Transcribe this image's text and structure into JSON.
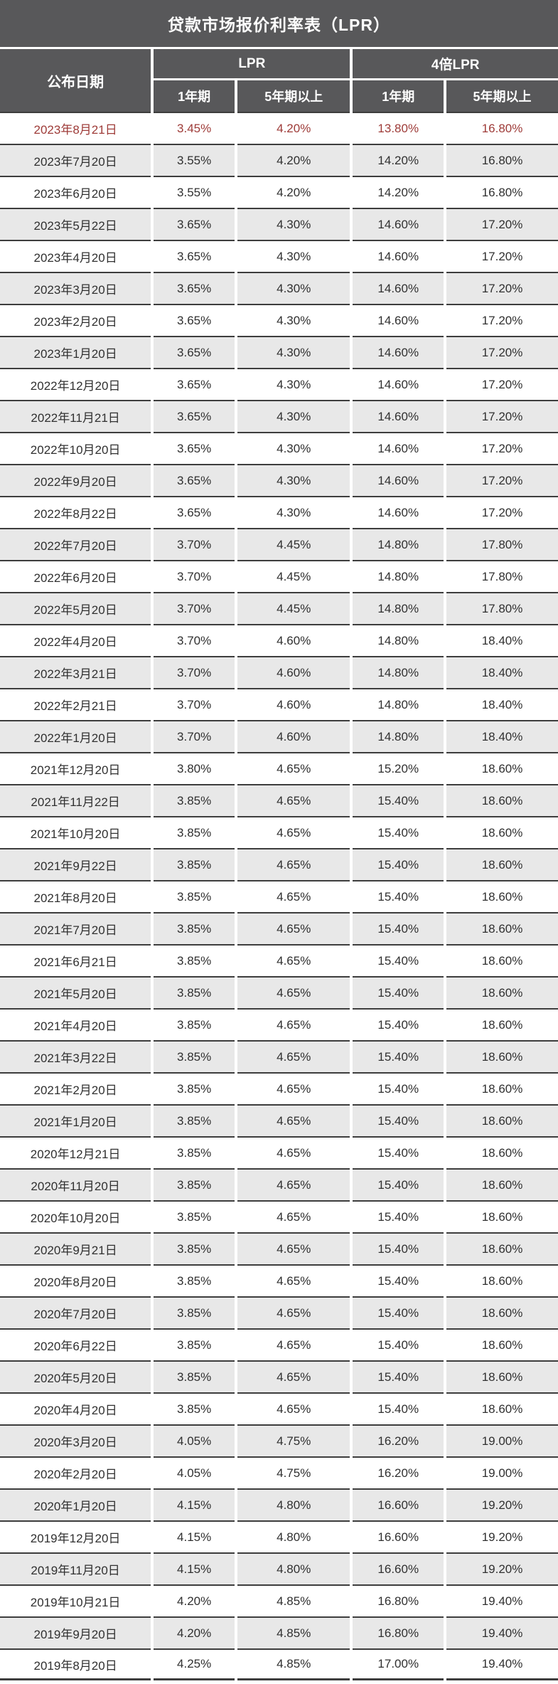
{
  "page_title": "贷款市场报价利率表（LPR）",
  "colors": {
    "header_bg": "#58585a",
    "alt_row_bg": "#e8e8e8",
    "row_border": "#3d3d3d",
    "highlight_text": "#9e3b38",
    "body_text": "#303030"
  },
  "header": {
    "columns": {
      "date": "公布日期",
      "group_lpr": "LPR",
      "group_4x": "4倍LPR",
      "term_1y": "1年期",
      "term_5y": "5年期以上"
    }
  },
  "chart_data": {
    "type": "table",
    "title": "贷款市场报价利率表（LPR）",
    "columns": [
      "公布日期",
      "LPR 1年期",
      "LPR 5年期以上",
      "4倍LPR 1年期",
      "4倍LPR 5年期以上"
    ],
    "highlight_row": 0,
    "rows": [
      [
        "2023年8月21日",
        "3.45%",
        "4.20%",
        "13.80%",
        "16.80%"
      ],
      [
        "2023年7月20日",
        "3.55%",
        "4.20%",
        "14.20%",
        "16.80%"
      ],
      [
        "2023年6月20日",
        "3.55%",
        "4.20%",
        "14.20%",
        "16.80%"
      ],
      [
        "2023年5月22日",
        "3.65%",
        "4.30%",
        "14.60%",
        "17.20%"
      ],
      [
        "2023年4月20日",
        "3.65%",
        "4.30%",
        "14.60%",
        "17.20%"
      ],
      [
        "2023年3月20日",
        "3.65%",
        "4.30%",
        "14.60%",
        "17.20%"
      ],
      [
        "2023年2月20日",
        "3.65%",
        "4.30%",
        "14.60%",
        "17.20%"
      ],
      [
        "2023年1月20日",
        "3.65%",
        "4.30%",
        "14.60%",
        "17.20%"
      ],
      [
        "2022年12月20日",
        "3.65%",
        "4.30%",
        "14.60%",
        "17.20%"
      ],
      [
        "2022年11月21日",
        "3.65%",
        "4.30%",
        "14.60%",
        "17.20%"
      ],
      [
        "2022年10月20日",
        "3.65%",
        "4.30%",
        "14.60%",
        "17.20%"
      ],
      [
        "2022年9月20日",
        "3.65%",
        "4.30%",
        "14.60%",
        "17.20%"
      ],
      [
        "2022年8月22日",
        "3.65%",
        "4.30%",
        "14.60%",
        "17.20%"
      ],
      [
        "2022年7月20日",
        "3.70%",
        "4.45%",
        "14.80%",
        "17.80%"
      ],
      [
        "2022年6月20日",
        "3.70%",
        "4.45%",
        "14.80%",
        "17.80%"
      ],
      [
        "2022年5月20日",
        "3.70%",
        "4.45%",
        "14.80%",
        "17.80%"
      ],
      [
        "2022年4月20日",
        "3.70%",
        "4.60%",
        "14.80%",
        "18.40%"
      ],
      [
        "2022年3月21日",
        "3.70%",
        "4.60%",
        "14.80%",
        "18.40%"
      ],
      [
        "2022年2月21日",
        "3.70%",
        "4.60%",
        "14.80%",
        "18.40%"
      ],
      [
        "2022年1月20日",
        "3.70%",
        "4.60%",
        "14.80%",
        "18.40%"
      ],
      [
        "2021年12月20日",
        "3.80%",
        "4.65%",
        "15.20%",
        "18.60%"
      ],
      [
        "2021年11月22日",
        "3.85%",
        "4.65%",
        "15.40%",
        "18.60%"
      ],
      [
        "2021年10月20日",
        "3.85%",
        "4.65%",
        "15.40%",
        "18.60%"
      ],
      [
        "2021年9月22日",
        "3.85%",
        "4.65%",
        "15.40%",
        "18.60%"
      ],
      [
        "2021年8月20日",
        "3.85%",
        "4.65%",
        "15.40%",
        "18.60%"
      ],
      [
        "2021年7月20日",
        "3.85%",
        "4.65%",
        "15.40%",
        "18.60%"
      ],
      [
        "2021年6月21日",
        "3.85%",
        "4.65%",
        "15.40%",
        "18.60%"
      ],
      [
        "2021年5月20日",
        "3.85%",
        "4.65%",
        "15.40%",
        "18.60%"
      ],
      [
        "2021年4月20日",
        "3.85%",
        "4.65%",
        "15.40%",
        "18.60%"
      ],
      [
        "2021年3月22日",
        "3.85%",
        "4.65%",
        "15.40%",
        "18.60%"
      ],
      [
        "2021年2月20日",
        "3.85%",
        "4.65%",
        "15.40%",
        "18.60%"
      ],
      [
        "2021年1月20日",
        "3.85%",
        "4.65%",
        "15.40%",
        "18.60%"
      ],
      [
        "2020年12月21日",
        "3.85%",
        "4.65%",
        "15.40%",
        "18.60%"
      ],
      [
        "2020年11月20日",
        "3.85%",
        "4.65%",
        "15.40%",
        "18.60%"
      ],
      [
        "2020年10月20日",
        "3.85%",
        "4.65%",
        "15.40%",
        "18.60%"
      ],
      [
        "2020年9月21日",
        "3.85%",
        "4.65%",
        "15.40%",
        "18.60%"
      ],
      [
        "2020年8月20日",
        "3.85%",
        "4.65%",
        "15.40%",
        "18.60%"
      ],
      [
        "2020年7月20日",
        "3.85%",
        "4.65%",
        "15.40%",
        "18.60%"
      ],
      [
        "2020年6月22日",
        "3.85%",
        "4.65%",
        "15.40%",
        "18.60%"
      ],
      [
        "2020年5月20日",
        "3.85%",
        "4.65%",
        "15.40%",
        "18.60%"
      ],
      [
        "2020年4月20日",
        "3.85%",
        "4.65%",
        "15.40%",
        "18.60%"
      ],
      [
        "2020年3月20日",
        "4.05%",
        "4.75%",
        "16.20%",
        "19.00%"
      ],
      [
        "2020年2月20日",
        "4.05%",
        "4.75%",
        "16.20%",
        "19.00%"
      ],
      [
        "2020年1月20日",
        "4.15%",
        "4.80%",
        "16.60%",
        "19.20%"
      ],
      [
        "2019年12月20日",
        "4.15%",
        "4.80%",
        "16.60%",
        "19.20%"
      ],
      [
        "2019年11月20日",
        "4.15%",
        "4.80%",
        "16.60%",
        "19.20%"
      ],
      [
        "2019年10月21日",
        "4.20%",
        "4.85%",
        "16.80%",
        "19.40%"
      ],
      [
        "2019年9月20日",
        "4.20%",
        "4.85%",
        "16.80%",
        "19.40%"
      ],
      [
        "2019年8月20日",
        "4.25%",
        "4.85%",
        "17.00%",
        "19.40%"
      ]
    ]
  }
}
